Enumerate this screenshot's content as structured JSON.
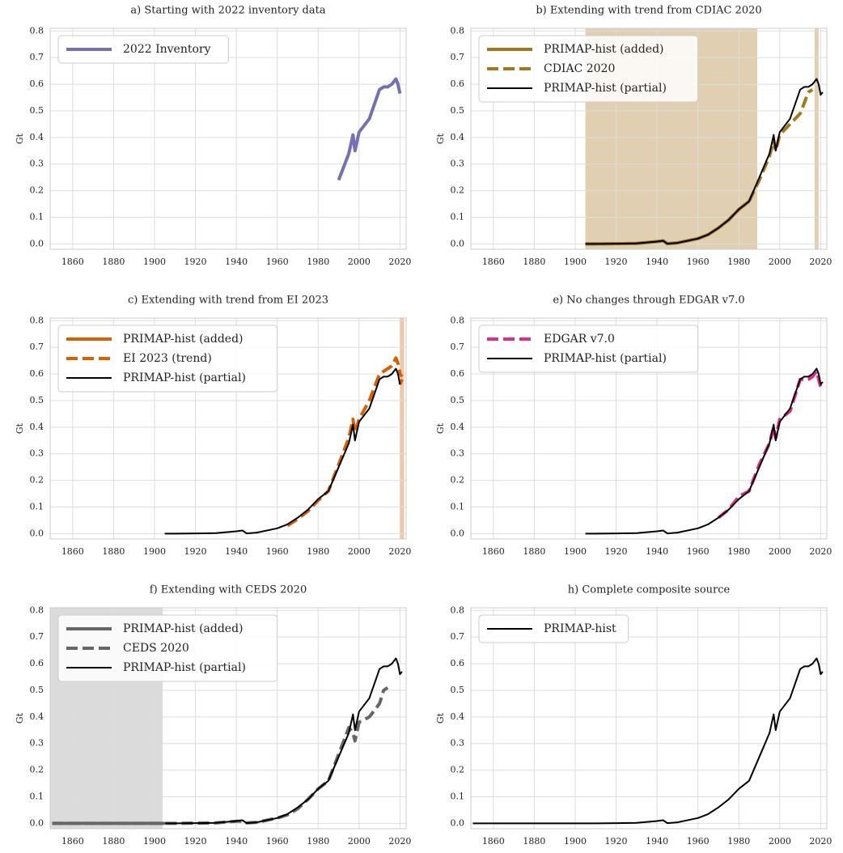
{
  "chart_data": [
    {
      "type": "line",
      "title": "a) Starting with 2022 inventory data",
      "ylabel": "Gt",
      "x": [
        1850,
        1860,
        1870,
        1880,
        1890,
        1900,
        1905,
        1910,
        1920,
        1930,
        1940,
        1943,
        1945,
        1950,
        1960,
        1965,
        1970,
        1975,
        1980,
        1985,
        1990,
        1995,
        1997,
        1998,
        2000,
        2005,
        2010,
        2012,
        2014,
        2016,
        2018,
        2019,
        2020,
        2021
      ],
      "xlim": [
        1849,
        2023
      ],
      "ylim": [
        -0.02,
        0.81
      ],
      "xticks": [
        1860,
        1880,
        1900,
        1920,
        1940,
        1960,
        1980,
        2000,
        2020
      ],
      "yticks": [
        {
          "value": 0,
          "label": "0.0"
        },
        0.1,
        0.2,
        0.3,
        0.4,
        0.5,
        0.6,
        0.7,
        0.8
      ],
      "grid": true,
      "legend": "upper-left",
      "series": [
        {
          "name": "2022 Inventory",
          "color": "#7570b3",
          "linestyle": "solid",
          "linewidth": 4,
          "values": [
            null,
            null,
            null,
            null,
            null,
            null,
            null,
            null,
            null,
            null,
            null,
            null,
            null,
            null,
            null,
            null,
            null,
            null,
            null,
            null,
            0.24,
            0.34,
            0.41,
            0.35,
            0.42,
            0.47,
            0.58,
            0.59,
            0.59,
            0.6,
            0.62,
            0.6,
            0.565,
            null
          ]
        }
      ]
    },
    {
      "type": "line",
      "title": "b) Extending with trend from CDIAC 2020",
      "ylabel": "Gt",
      "x": [
        1850,
        1860,
        1870,
        1880,
        1890,
        1900,
        1905,
        1910,
        1920,
        1930,
        1940,
        1943,
        1945,
        1950,
        1960,
        1965,
        1970,
        1975,
        1980,
        1985,
        1990,
        1995,
        1997,
        1998,
        2000,
        2005,
        2010,
        2012,
        2014,
        2016,
        2018,
        2019,
        2020,
        2021
      ],
      "xlim": [
        1849,
        2023
      ],
      "ylim": [
        -0.02,
        0.81
      ],
      "xticks": [
        1860,
        1880,
        1900,
        1920,
        1940,
        1960,
        1980,
        2000,
        2020
      ],
      "yticks": [
        {
          "value": 0,
          "label": "0.0"
        },
        0.1,
        0.2,
        0.3,
        0.4,
        0.5,
        0.6,
        0.7,
        0.8
      ],
      "grid": true,
      "legend": "upper-left",
      "shade": [
        [
          1905,
          1989
        ],
        [
          2017,
          2019
        ]
      ],
      "shade_color": "#a6761d",
      "series": [
        {
          "name": "PRIMAP-hist (added)",
          "color": "#a6761d",
          "linestyle": "solid",
          "linewidth": 4,
          "values": [
            null,
            null,
            null,
            null,
            null,
            null,
            0,
            0,
            0.001,
            0.002,
            0.009,
            0.012,
            0.001,
            0.004,
            0.02,
            0.035,
            0.06,
            0.09,
            0.13,
            0.16,
            null,
            null,
            null,
            null,
            null,
            null,
            null,
            null,
            null,
            null,
            null,
            null,
            null,
            null
          ]
        },
        {
          "name": "CDIAC 2020",
          "color": "#a6761d",
          "linestyle": "dashed",
          "linewidth": 4,
          "values": [
            null,
            null,
            null,
            null,
            null,
            null,
            0,
            0,
            0.001,
            0.002,
            0.009,
            0.012,
            0.001,
            0.004,
            0.02,
            0.035,
            0.06,
            0.09,
            0.13,
            0.16,
            0.24,
            0.33,
            0.39,
            0.35,
            0.41,
            0.45,
            0.49,
            0.53,
            0.57,
            0.58,
            null,
            null,
            null,
            null
          ]
        },
        {
          "name": "PRIMAP-hist (partial)",
          "color": "#000000",
          "linestyle": "solid",
          "linewidth": 2,
          "values": [
            null,
            null,
            null,
            null,
            null,
            null,
            0,
            0,
            0.001,
            0.002,
            0.009,
            0.012,
            0.001,
            0.004,
            0.02,
            0.035,
            0.06,
            0.09,
            0.13,
            0.16,
            0.25,
            0.34,
            0.41,
            0.35,
            0.42,
            0.47,
            0.58,
            0.59,
            0.59,
            0.6,
            0.62,
            0.6,
            0.56,
            0.57
          ]
        }
      ]
    },
    {
      "type": "line",
      "title": "c) Extending with trend from EI 2023",
      "ylabel": "Gt",
      "x": [
        1850,
        1860,
        1870,
        1880,
        1890,
        1900,
        1905,
        1910,
        1920,
        1930,
        1940,
        1943,
        1945,
        1950,
        1960,
        1965,
        1970,
        1975,
        1980,
        1985,
        1990,
        1995,
        1997,
        1998,
        2000,
        2005,
        2010,
        2012,
        2014,
        2016,
        2018,
        2019,
        2020,
        2021
      ],
      "xlim": [
        1849,
        2023
      ],
      "ylim": [
        -0.02,
        0.81
      ],
      "xticks": [
        1860,
        1880,
        1900,
        1920,
        1940,
        1960,
        1980,
        2000,
        2020
      ],
      "yticks": [
        {
          "value": 0,
          "label": "0.0"
        },
        0.1,
        0.2,
        0.3,
        0.4,
        0.5,
        0.6,
        0.7,
        0.8
      ],
      "grid": true,
      "legend": "upper-left",
      "shade": [
        [
          2020,
          2022
        ]
      ],
      "shade_color": "#d95f02",
      "series": [
        {
          "name": "PRIMAP-hist (added)",
          "color": "#d95f02",
          "linestyle": "solid",
          "linewidth": 4,
          "values": [
            null,
            null,
            null,
            null,
            null,
            null,
            null,
            null,
            null,
            null,
            null,
            null,
            null,
            null,
            null,
            null,
            null,
            null,
            null,
            null,
            null,
            null,
            null,
            null,
            null,
            null,
            null,
            null,
            null,
            null,
            null,
            null,
            0.56,
            0.58
          ]
        },
        {
          "name": "EI 2023 (trend)",
          "color": "#d95f02",
          "linestyle": "dashed",
          "linewidth": 4,
          "values": [
            null,
            null,
            null,
            null,
            null,
            null,
            null,
            null,
            null,
            null,
            null,
            null,
            null,
            null,
            null,
            0.03,
            0.055,
            0.085,
            0.125,
            0.16,
            0.26,
            0.36,
            0.43,
            0.38,
            0.43,
            0.5,
            0.6,
            0.61,
            0.62,
            0.63,
            0.66,
            0.64,
            0.6,
            0.59
          ]
        },
        {
          "name": "PRIMAP-hist (partial)",
          "color": "#000000",
          "linestyle": "solid",
          "linewidth": 2,
          "values": [
            null,
            null,
            null,
            null,
            null,
            null,
            0,
            0,
            0.001,
            0.002,
            0.009,
            0.012,
            0.001,
            0.004,
            0.02,
            0.035,
            0.06,
            0.09,
            0.13,
            0.16,
            0.25,
            0.34,
            0.41,
            0.35,
            0.42,
            0.47,
            0.58,
            0.59,
            0.59,
            0.6,
            0.62,
            0.6,
            0.56,
            null
          ]
        }
      ]
    },
    {
      "type": "line",
      "title": "e) No changes through EDGAR v7.0",
      "ylabel": "Gt",
      "x": [
        1850,
        1860,
        1870,
        1880,
        1890,
        1900,
        1905,
        1910,
        1920,
        1930,
        1940,
        1943,
        1945,
        1950,
        1960,
        1965,
        1970,
        1975,
        1980,
        1985,
        1990,
        1995,
        1997,
        1998,
        2000,
        2005,
        2010,
        2012,
        2014,
        2016,
        2018,
        2019,
        2020,
        2021
      ],
      "xlim": [
        1849,
        2023
      ],
      "ylim": [
        -0.02,
        0.81
      ],
      "xticks": [
        1860,
        1880,
        1900,
        1920,
        1940,
        1960,
        1980,
        2000,
        2020
      ],
      "yticks": [
        {
          "value": 0,
          "label": "0.0"
        },
        0.1,
        0.2,
        0.3,
        0.4,
        0.5,
        0.6,
        0.7,
        0.8
      ],
      "grid": true,
      "legend": "upper-left",
      "series": [
        {
          "name": "EDGAR v7.0",
          "color": "#e7298a",
          "linestyle": "dashed",
          "linewidth": 4,
          "values": [
            null,
            null,
            null,
            null,
            null,
            null,
            null,
            null,
            null,
            null,
            null,
            null,
            null,
            null,
            null,
            null,
            0.06,
            0.09,
            0.14,
            0.16,
            0.26,
            0.34,
            0.4,
            0.36,
            0.43,
            0.46,
            0.58,
            0.58,
            0.58,
            0.59,
            0.61,
            0.58,
            0.55,
            0.56
          ]
        },
        {
          "name": "PRIMAP-hist (partial)",
          "color": "#000000",
          "linestyle": "solid",
          "linewidth": 2,
          "values": [
            null,
            null,
            null,
            null,
            null,
            null,
            0,
            0,
            0.001,
            0.002,
            0.009,
            0.012,
            0.001,
            0.004,
            0.02,
            0.035,
            0.06,
            0.09,
            0.13,
            0.16,
            0.25,
            0.34,
            0.41,
            0.35,
            0.42,
            0.47,
            0.58,
            0.59,
            0.59,
            0.6,
            0.62,
            0.6,
            0.56,
            0.57
          ]
        }
      ]
    },
    {
      "type": "line",
      "title": "f) Extending with CEDS 2020",
      "ylabel": "Gt",
      "x": [
        1850,
        1860,
        1870,
        1880,
        1890,
        1900,
        1905,
        1910,
        1920,
        1930,
        1940,
        1943,
        1945,
        1950,
        1960,
        1965,
        1970,
        1975,
        1980,
        1985,
        1990,
        1995,
        1997,
        1998,
        2000,
        2005,
        2010,
        2012,
        2014,
        2016,
        2018,
        2019,
        2020,
        2021
      ],
      "xlim": [
        1849,
        2023
      ],
      "ylim": [
        -0.02,
        0.81
      ],
      "xticks": [
        1860,
        1880,
        1900,
        1920,
        1940,
        1960,
        1980,
        2000,
        2020
      ],
      "yticks": [
        {
          "value": 0,
          "label": "0.0"
        },
        0.1,
        0.2,
        0.3,
        0.4,
        0.5,
        0.6,
        0.7,
        0.8
      ],
      "grid": true,
      "legend": "upper-left",
      "shade": [
        [
          1849,
          1904
        ]
      ],
      "shade_color": "#999999",
      "series": [
        {
          "name": "PRIMAP-hist (added)",
          "color": "#666666",
          "linestyle": "solid",
          "linewidth": 4,
          "values": [
            0,
            0,
            0,
            0,
            0,
            0,
            0,
            null,
            null,
            null,
            null,
            null,
            null,
            null,
            null,
            null,
            null,
            null,
            null,
            null,
            null,
            null,
            null,
            null,
            null,
            null,
            null,
            null,
            null,
            null,
            null,
            null,
            null,
            null
          ]
        },
        {
          "name": "CEDS 2020",
          "color": "#666666",
          "linestyle": "dashed",
          "linewidth": 4,
          "values": [
            0,
            0,
            0,
            0,
            0,
            0,
            0,
            0,
            0.001,
            0.002,
            0.008,
            0.008,
            0.002,
            0.004,
            0.02,
            0.032,
            0.055,
            0.09,
            0.13,
            0.16,
            0.26,
            0.36,
            0.34,
            0.31,
            0.38,
            0.4,
            0.45,
            0.5,
            0.51,
            null,
            null,
            null,
            null,
            null
          ]
        },
        {
          "name": "PRIMAP-hist (partial)",
          "color": "#000000",
          "linestyle": "solid",
          "linewidth": 2,
          "values": [
            null,
            null,
            null,
            null,
            null,
            null,
            0,
            0,
            0.001,
            0.002,
            0.009,
            0.012,
            0.001,
            0.004,
            0.02,
            0.035,
            0.06,
            0.09,
            0.13,
            0.16,
            0.25,
            0.34,
            0.41,
            0.35,
            0.42,
            0.47,
            0.58,
            0.59,
            0.59,
            0.6,
            0.62,
            0.6,
            0.56,
            0.57
          ]
        }
      ]
    },
    {
      "type": "line",
      "title": "h) Complete composite source",
      "ylabel": "Gt",
      "x": [
        1850,
        1860,
        1870,
        1880,
        1890,
        1900,
        1905,
        1910,
        1920,
        1930,
        1940,
        1943,
        1945,
        1950,
        1960,
        1965,
        1970,
        1975,
        1980,
        1985,
        1990,
        1995,
        1997,
        1998,
        2000,
        2005,
        2010,
        2012,
        2014,
        2016,
        2018,
        2019,
        2020,
        2021
      ],
      "xlim": [
        1849,
        2023
      ],
      "ylim": [
        -0.02,
        0.81
      ],
      "xticks": [
        1860,
        1880,
        1900,
        1920,
        1940,
        1960,
        1980,
        2000,
        2020
      ],
      "yticks": [
        {
          "value": 0,
          "label": "0.0"
        },
        0.1,
        0.2,
        0.3,
        0.4,
        0.5,
        0.6,
        0.7,
        0.8
      ],
      "grid": true,
      "legend": "upper-left",
      "series": [
        {
          "name": "PRIMAP-hist",
          "color": "#000000",
          "linestyle": "solid",
          "linewidth": 2,
          "values": [
            0,
            0,
            0,
            0,
            0,
            0,
            0,
            0,
            0.001,
            0.002,
            0.009,
            0.012,
            0.001,
            0.004,
            0.02,
            0.035,
            0.06,
            0.09,
            0.13,
            0.16,
            0.25,
            0.34,
            0.41,
            0.35,
            0.42,
            0.47,
            0.58,
            0.59,
            0.59,
            0.6,
            0.62,
            0.6,
            0.56,
            0.57
          ]
        }
      ]
    }
  ]
}
